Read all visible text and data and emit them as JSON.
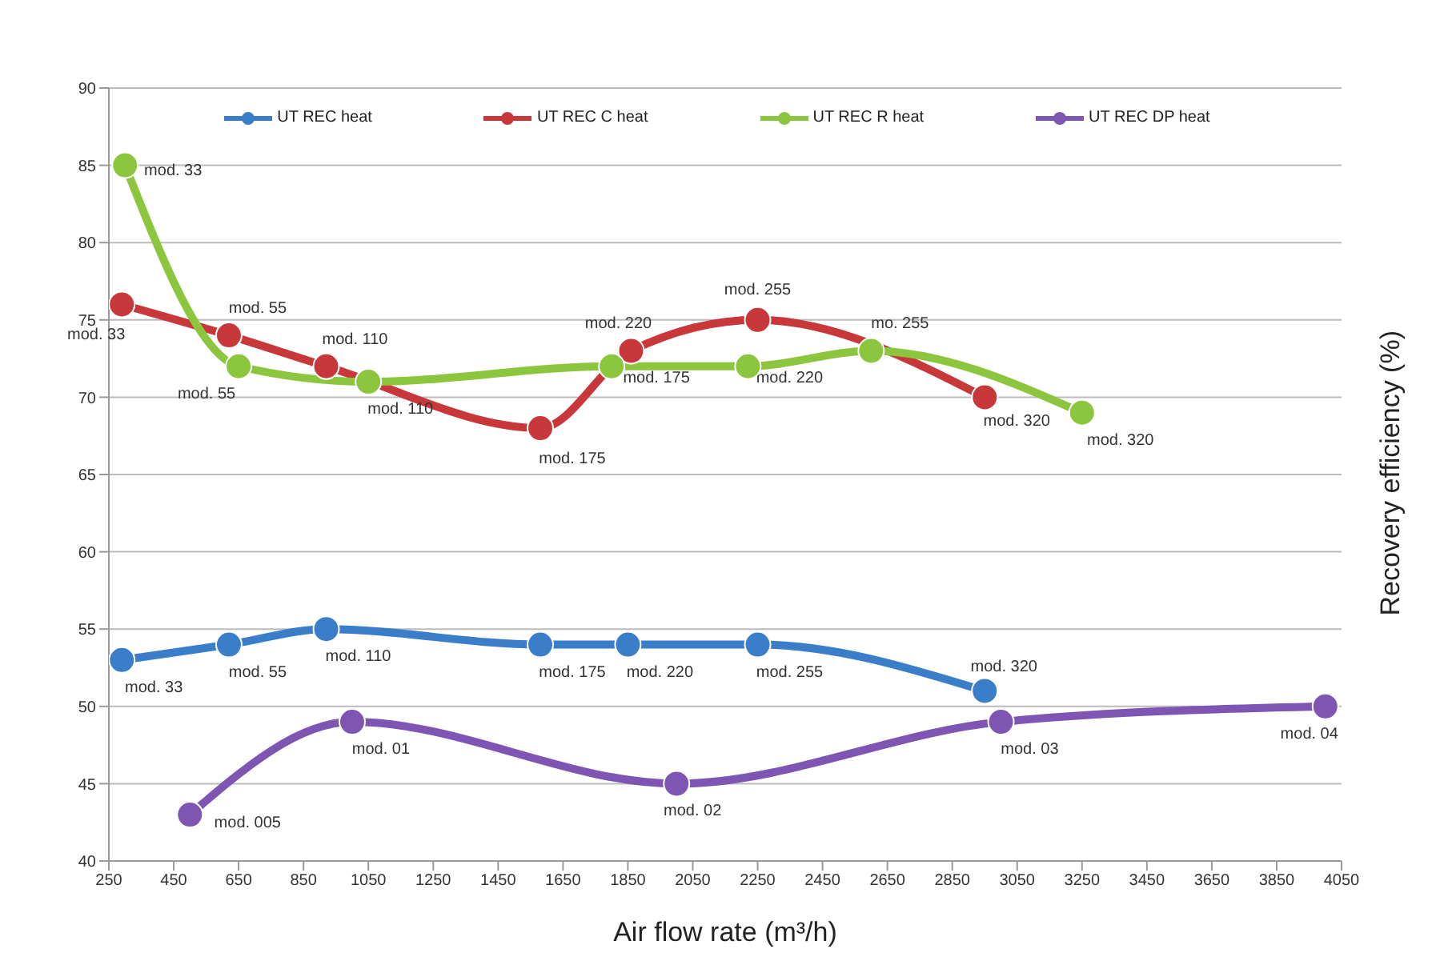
{
  "chart_data": {
    "type": "line",
    "xlabel": "Air flow rate (m³/h)",
    "ylabel": "Recovery efficiency (%)",
    "xlim": [
      250,
      4050
    ],
    "xticks": [
      250,
      450,
      650,
      850,
      1050,
      1250,
      1450,
      1650,
      1850,
      2050,
      2250,
      2450,
      2650,
      2850,
      3050,
      3250,
      3450,
      3650,
      3850,
      4050
    ],
    "ylim": [
      40,
      90
    ],
    "yticks": [
      40,
      45,
      50,
      55,
      60,
      65,
      70,
      75,
      80,
      85,
      90
    ],
    "grid": "y",
    "legend": "top",
    "marker": "circle",
    "line_style": "solid",
    "series": [
      {
        "name": "UT REC heat",
        "color": "#3a7dc9",
        "x": [
          290,
          620,
          920,
          1580,
          1850,
          2250,
          2950
        ],
        "values": [
          53,
          54,
          55,
          54,
          54,
          54,
          51
        ]
      },
      {
        "name": "UT REC C heat",
        "color": "#c8373a",
        "x": [
          290,
          620,
          920,
          1580,
          1860,
          2250,
          2950
        ],
        "values": [
          76,
          74,
          72,
          68,
          73,
          75,
          70
        ]
      },
      {
        "name": "UT REC R heat",
        "color": "#8cc63f",
        "x": [
          300,
          650,
          1050,
          1800,
          2220,
          2600,
          3250
        ],
        "values": [
          85,
          72,
          71,
          72,
          72,
          73,
          69
        ]
      },
      {
        "name": "UT REC DP heat",
        "color": "#7f55b3",
        "x": [
          500,
          1000,
          2000,
          3000,
          4000
        ],
        "values": [
          43,
          49,
          45,
          49,
          50
        ]
      }
    ],
    "annotations": [
      {
        "text": "mod. 33",
        "x": 290,
        "y": 53
      },
      {
        "text": "mod. 55",
        "x": 620,
        "y": 54
      },
      {
        "text": "mod. 110",
        "x": 920,
        "y": 55
      },
      {
        "text": "mod. 175",
        "x": 1580,
        "y": 54
      },
      {
        "text": "mod. 220",
        "x": 1850,
        "y": 54
      },
      {
        "text": "mod. 255",
        "x": 2250,
        "y": 54
      },
      {
        "text": "mod. 320",
        "x": 2950,
        "y": 51
      },
      {
        "text": "mod. 33",
        "x": 290,
        "y": 76
      },
      {
        "text": "mod. 55",
        "x": 620,
        "y": 74
      },
      {
        "text": "mod. 110",
        "x": 920,
        "y": 72
      },
      {
        "text": "mod. 175",
        "x": 1580,
        "y": 68
      },
      {
        "text": "mod. 220",
        "x": 1860,
        "y": 73
      },
      {
        "text": "mod. 255",
        "x": 2250,
        "y": 75
      },
      {
        "text": "mod. 320",
        "x": 2950,
        "y": 70
      },
      {
        "text": "mod. 33",
        "x": 300,
        "y": 85
      },
      {
        "text": "mod. 55",
        "x": 650,
        "y": 72
      },
      {
        "text": "mod. 110",
        "x": 1050,
        "y": 71
      },
      {
        "text": "mod. 175",
        "x": 1800,
        "y": 72
      },
      {
        "text": "mod. 220",
        "x": 2220,
        "y": 72
      },
      {
        "text": "mo. 255",
        "x": 2600,
        "y": 73
      },
      {
        "text": "mod. 320",
        "x": 3250,
        "y": 69
      },
      {
        "text": "mod. 005",
        "x": 500,
        "y": 43
      },
      {
        "text": "mod. 01",
        "x": 1000,
        "y": 49
      },
      {
        "text": "mod. 02",
        "x": 2000,
        "y": 45
      },
      {
        "text": "mod. 03",
        "x": 3000,
        "y": 49
      },
      {
        "text": "mod. 04",
        "x": 4000,
        "y": 50
      }
    ]
  }
}
